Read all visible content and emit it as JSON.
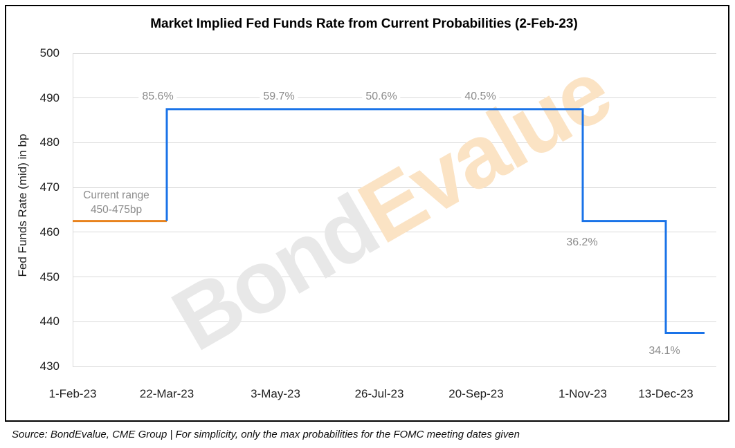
{
  "title": "Market Implied Fed Funds Rate from Current Probabilities (2-Feb-23)",
  "source_note": "Source: BondEvalue, CME Group | For simplicity, only the max probabilities for the FOMC meeting dates given",
  "watermark": {
    "part1": "Bond",
    "part2": "Evalue",
    "color1": "#e8e8e8",
    "color2": "#fbe3c4"
  },
  "chart_data": {
    "type": "line",
    "subtype": "step",
    "title": "Market Implied Fed Funds Rate from Current Probabilities (2-Feb-23)",
    "xlabel": "",
    "ylabel": "Fed Funds Rate (mid) in bp",
    "ylim": [
      430,
      500
    ],
    "yticks": [
      500,
      490,
      480,
      470,
      460,
      450,
      440,
      430
    ],
    "grid": true,
    "legend": false,
    "categories": [
      "1-Feb-23",
      "22-Mar-23",
      "3-May-23",
      "26-Jul-23",
      "20-Sep-23",
      "1-Nov-23",
      "13-Dec-23"
    ],
    "series": [
      {
        "name": "current-range-segment",
        "color": "#e8831d",
        "step_values": [
          {
            "from": "1-Feb-23",
            "to": "22-Mar-23",
            "value": 462.5
          }
        ]
      },
      {
        "name": "market-implied-rate",
        "color": "#1a73e8",
        "step_values": [
          {
            "from": "22-Mar-23",
            "to": "1-Nov-23",
            "value": 487.5
          },
          {
            "from": "1-Nov-23",
            "to": "13-Dec-23",
            "value": 462.5
          },
          {
            "from": "13-Dec-23",
            "to": "end",
            "value": 437.5
          }
        ]
      }
    ],
    "point_labels": [
      {
        "text": "85.6%",
        "category": "22-Mar-23"
      },
      {
        "text": "59.7%",
        "category": "3-May-23"
      },
      {
        "text": "50.6%",
        "category": "26-Jul-23"
      },
      {
        "text": "40.5%",
        "category": "20-Sep-23"
      },
      {
        "text": "36.2%",
        "category": "1-Nov-23"
      },
      {
        "text": "34.1%",
        "category": "13-Dec-23"
      }
    ],
    "annotation": {
      "line1": "Current range",
      "line2": "450-475bp"
    },
    "colors": {
      "gridline": "#d9d9d9",
      "label_gray": "#8c8c8c",
      "axis_text": "#1f1f1f",
      "line_blue": "#1a73e8",
      "line_orange": "#e8831d"
    }
  }
}
